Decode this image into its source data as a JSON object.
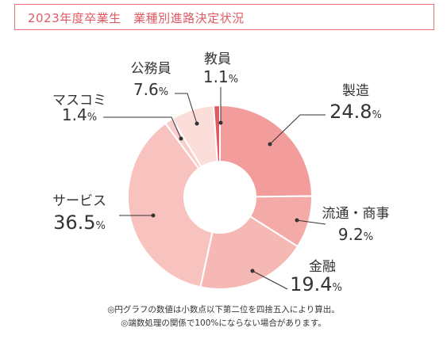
{
  "title": "2023年度卒業生　業種別進路決定状況",
  "chart_data": {
    "type": "pie",
    "style": "donut",
    "start": "top, clockwise",
    "slices": [
      {
        "label": "製造",
        "value": 24.8,
        "display": "24.8",
        "unit": "%",
        "color": "#f29d9b"
      },
      {
        "label": "流通・商事",
        "value": 9.2,
        "display": "9.2",
        "unit": "%",
        "color": "#f4aaa7"
      },
      {
        "label": "金融",
        "value": 19.4,
        "display": "19.4",
        "unit": "%",
        "color": "#f6b8b5"
      },
      {
        "label": "サービス",
        "value": 36.5,
        "display": "36.5",
        "unit": "%",
        "color": "#f8c2bf"
      },
      {
        "label": "マスコミ",
        "value": 1.4,
        "display": "1.4",
        "unit": "%",
        "color": "#f9cdcb"
      },
      {
        "label": "公務員",
        "value": 7.6,
        "display": "7.6",
        "unit": "%",
        "color": "#fbddda"
      },
      {
        "label": "教員",
        "value": 1.1,
        "display": "1.1",
        "unit": "%",
        "color": "#e05a63"
      }
    ],
    "legend": "none",
    "grid": false
  },
  "notes": [
    "◎円グラフの数値は小数点以下第二位を四捨五入により算出。",
    "◎端数処理の関係で100%にならない場合があります。"
  ]
}
